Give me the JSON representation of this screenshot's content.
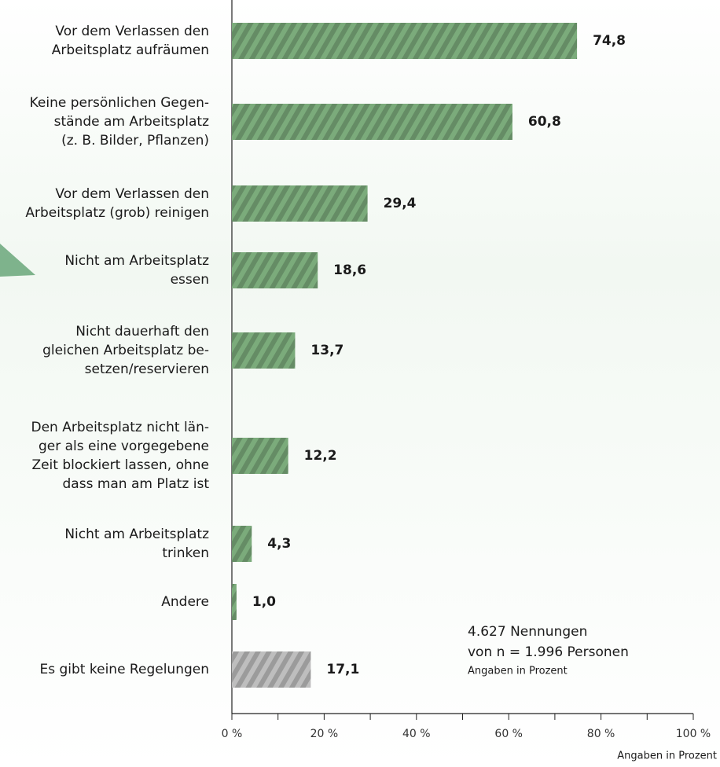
{
  "chart_data": {
    "type": "hbar",
    "categories": [
      [
        "Vor dem Verlassen den",
        "Arbeitsplatz aufräumen"
      ],
      [
        "Keine persönlichen Gegen-",
        "stände am Arbeitsplatz",
        "(z. B. Bilder, Pflanzen)"
      ],
      [
        "Vor dem Verlassen den",
        "Arbeitsplatz (grob) reinigen"
      ],
      [
        "Nicht am Arbeitsplatz",
        "essen"
      ],
      [
        "Nicht dauerhaft den",
        "gleichen Arbeitsplatz be-",
        "setzen/reservieren"
      ],
      [
        "Den Arbeitsplatz nicht län-",
        "ger als eine vorgegebene",
        "Zeit blockiert lassen, ohne",
        "dass man am Platz ist"
      ],
      [
        "Nicht am Arbeitsplatz",
        "trinken"
      ],
      [
        "Andere"
      ],
      [
        "Es gibt keine Regelungen"
      ]
    ],
    "values": [
      74.8,
      60.8,
      29.4,
      18.6,
      13.7,
      12.2,
      4.3,
      1.0,
      17.1
    ],
    "value_labels": [
      "74,8",
      "60,8",
      "29,4",
      "18,6",
      "13,7",
      "12,2",
      "4,3",
      "1,0",
      "17,1"
    ],
    "colors": [
      "#4f8f4f",
      "#4f8f4f",
      "#4f8f4f",
      "#4f8f4f",
      "#4f8f4f",
      "#4f8f4f",
      "#4f8f4f",
      "#4f8f4f",
      "#a8a8a8"
    ],
    "xlim": [
      0,
      100
    ],
    "xticks": [
      {
        "value": 0,
        "label": "0 %"
      },
      {
        "value": 20,
        "label": "20 %"
      },
      {
        "value": 40,
        "label": "40 %"
      },
      {
        "value": 60,
        "label": "60 %"
      },
      {
        "value": 80,
        "label": "80 %"
      },
      {
        "value": 100,
        "label": "100 %"
      }
    ],
    "xminorticks": [
      10,
      30,
      50,
      70,
      90
    ],
    "xlabel": "Angaben in Prozent",
    "annotations": [
      "4.627 Nennungen",
      "von n = 1.996 Personen",
      "Angaben in Prozent"
    ]
  }
}
